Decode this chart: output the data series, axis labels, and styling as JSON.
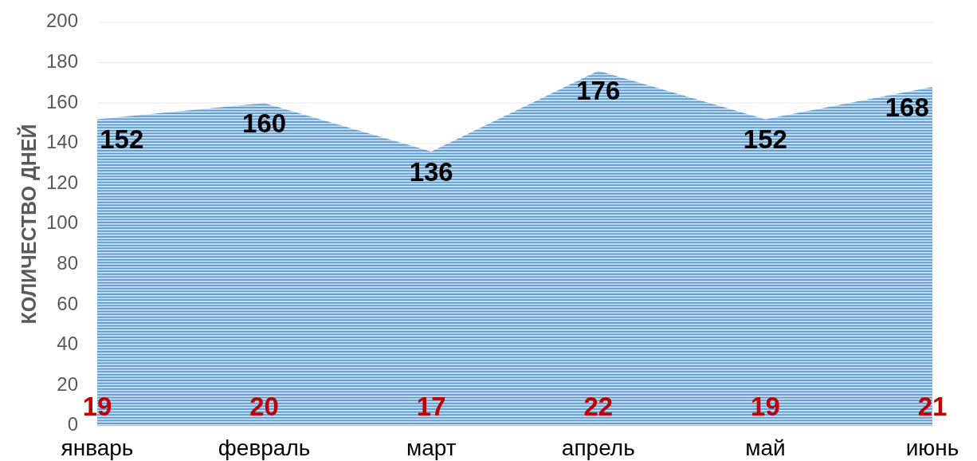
{
  "chart_data": {
    "type": "area",
    "ylabel": "КОЛИЧЕСТВО ДНЕЙ",
    "categories": [
      "январь",
      "февраль",
      "март",
      "апрель",
      "май",
      "июнь"
    ],
    "series": [
      {
        "color": "#5b9bd5",
        "values": [
          152,
          160,
          136,
          176,
          152,
          168
        ]
      },
      {
        "values": [
          null,
          null,
          null,
          null,
          null,
          null
        ],
        "value_labels": [
          "19",
          "20",
          "17",
          "22",
          "19",
          "21"
        ]
      }
    ],
    "ylim": [
      0,
      200
    ],
    "yticks": [
      0,
      20,
      40,
      60,
      80,
      100,
      120,
      140,
      160,
      180,
      200
    ],
    "grid": "y",
    "data_labels": true
  }
}
